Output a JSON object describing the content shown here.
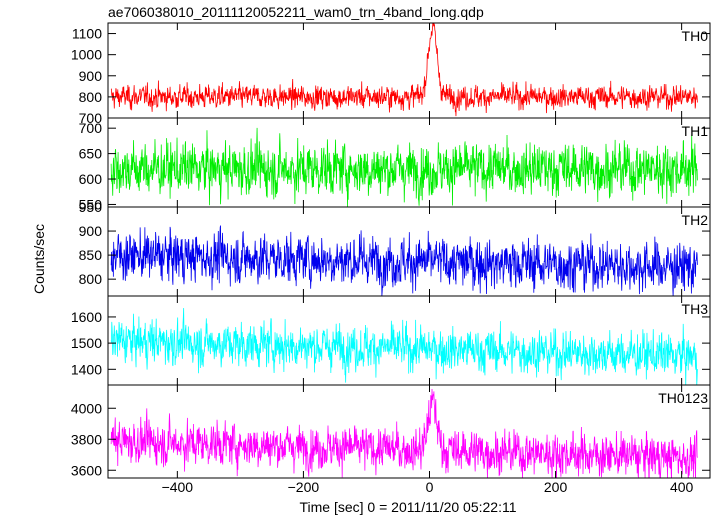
{
  "chart_data": {
    "type": "line",
    "title": "ae706038010_20111120052211_wam0_trn_4band_long.qdp",
    "xlabel": "Time [sec] 0 = 2011/11/20 05:22:11",
    "ylabel": "Counts/sec",
    "xlim": [
      -510,
      445
    ],
    "x_ticks": [
      -400,
      -200,
      0,
      200,
      400
    ],
    "x_tick_labels": [
      "−400",
      "−200",
      "0",
      "200",
      "400"
    ],
    "panels": [
      {
        "name": "TH0",
        "color": "#ff0000",
        "ylim": [
          700,
          1150
        ],
        "y_ticks": [
          700,
          800,
          900,
          1000,
          1100
        ],
        "baseline": 800,
        "noise": 30,
        "trend": 0,
        "peak": {
          "x": 5,
          "amplitude": 330,
          "width": 7
        }
      },
      {
        "name": "TH1",
        "color": "#00ee00",
        "ylim": [
          545,
          720
        ],
        "y_ticks": [
          550,
          600,
          650,
          700
        ],
        "baseline": 620,
        "noise": 28,
        "trend": 0,
        "peak": null
      },
      {
        "name": "TH2",
        "color": "#0000ee",
        "ylim": [
          765,
          950
        ],
        "y_ticks": [
          800,
          850,
          900,
          950
        ],
        "baseline": 850,
        "noise": 28,
        "trend": -25,
        "peak": null
      },
      {
        "name": "TH3",
        "color": "#00ffff",
        "ylim": [
          1340,
          1680
        ],
        "y_ticks": [
          1400,
          1500,
          1600
        ],
        "baseline": 1510,
        "noise": 45,
        "trend": -60,
        "peak": null
      },
      {
        "name": "TH0123",
        "color": "#ff00ff",
        "ylim": [
          3550,
          4150
        ],
        "y_ticks": [
          3600,
          3800,
          4000
        ],
        "baseline": 3790,
        "noise": 75,
        "trend": -110,
        "peak": {
          "x": 5,
          "amplitude": 300,
          "width": 7
        }
      }
    ]
  }
}
